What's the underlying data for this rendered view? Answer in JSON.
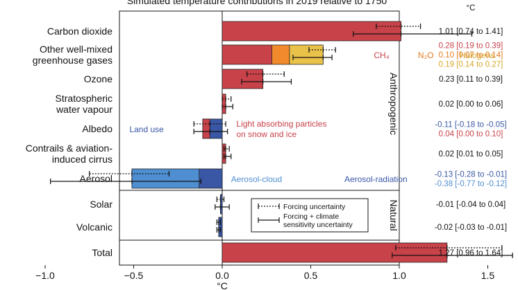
{
  "chart_data": {
    "type": "bar",
    "title": "Simulated temperature contributions in 2019 relative to 1750",
    "xlabel": "°C",
    "value_unit": "°C",
    "xlim": [
      -1.15,
      2.0
    ],
    "xticks": [
      -1.0,
      -0.5,
      0.0,
      0.5,
      1.0,
      1.5,
      2.0
    ],
    "xtick_labels": [
      "−1.0",
      "−0.5",
      "0.0",
      "0.5",
      "1.0",
      "1.5",
      "2.0"
    ],
    "groups": [
      {
        "name": "Anthropogenic",
        "rows": 7
      },
      {
        "name": "Natural",
        "rows": 2
      }
    ],
    "categories": [
      {
        "name": "carbon-dioxide",
        "label_lines": [
          "Carbon dioxide"
        ],
        "segments": [
          {
            "name": "Carbon dioxide",
            "start": 0,
            "end": 1.01,
            "color": "#c8424a"
          }
        ],
        "forcing_unc": [
          0.87,
          1.12
        ],
        "forcing_unc_mid": 1.01,
        "total_unc": [
          0.74,
          1.41
        ],
        "total_unc_mid": 1.01,
        "value_lines": [
          {
            "text": "1.01 [0.74 to 1.41]",
            "color": "#111111"
          }
        ]
      },
      {
        "name": "other-ghg",
        "label_lines": [
          "Other well-mixed",
          "greenhouse gases"
        ],
        "segments": [
          {
            "name": "CH₄",
            "start": 0,
            "end": 0.28,
            "color": "#c8424a"
          },
          {
            "name": "N₂O",
            "start": 0.28,
            "end": 0.38,
            "color": "#f08a2c"
          },
          {
            "name": "Halogens",
            "start": 0.38,
            "end": 0.57,
            "color": "#e9c24a"
          }
        ],
        "forcing_unc": [
          0.49,
          0.64
        ],
        "forcing_unc_mid": 0.57,
        "total_unc": [
          0.4,
          0.62
        ],
        "total_unc_mid": 0.57,
        "value_lines": [
          {
            "text": "0.28 [0.19 to 0.39]",
            "color": "#c8424a"
          },
          {
            "text": "0.10 [0.07 to 0.14]",
            "color": "#e07b1f"
          },
          {
            "text": "0.19 [0.14 to 0.27]",
            "color": "#d6a82a"
          }
        ],
        "segment_labels": [
          {
            "text": "CH₄",
            "color": "#c8424a",
            "at": 0.9
          },
          {
            "text": "N₂O",
            "color": "#e07b1f",
            "at": 1.15
          },
          {
            "text": "Halogens",
            "color": "#d6a82a",
            "at": 1.44
          }
        ]
      },
      {
        "name": "ozone",
        "label_lines": [
          "Ozone"
        ],
        "segments": [
          {
            "name": "Ozone",
            "start": 0,
            "end": 0.23,
            "color": "#c8424a"
          }
        ],
        "forcing_unc": [
          0.14,
          0.35
        ],
        "forcing_unc_mid": 0.23,
        "total_unc": [
          0.11,
          0.39
        ],
        "total_unc_mid": 0.23,
        "value_lines": [
          {
            "text": "0.23 [0.11 to 0.39]",
            "color": "#111111"
          }
        ]
      },
      {
        "name": "stratospheric-water-vapour",
        "label_lines": [
          "Stratospheric",
          "water vapour"
        ],
        "segments": [
          {
            "name": "Stratospheric water vapour",
            "start": 0,
            "end": 0.02,
            "color": "#c8424a"
          }
        ],
        "forcing_unc": [
          0.0,
          0.05
        ],
        "forcing_unc_mid": 0.02,
        "total_unc": [
          0.0,
          0.06
        ],
        "total_unc_mid": 0.02,
        "value_lines": [
          {
            "text": "0.02 [0.00 to 0.06]",
            "color": "#111111"
          }
        ]
      },
      {
        "name": "albedo",
        "label_lines": [
          "Albedo"
        ],
        "segments": [
          {
            "name": "Land use",
            "start": 0,
            "end": -0.11,
            "color": "#3a57a6"
          },
          {
            "name": "Light absorbing particles on snow and ice",
            "start": -0.11,
            "end": -0.07,
            "color": "#c8424a"
          }
        ],
        "forcing_unc": [
          -0.16,
          0.02
        ],
        "forcing_unc_mid": -0.07,
        "total_unc": [
          -0.16,
          0.03
        ],
        "total_unc_mid": -0.07,
        "value_lines": [
          {
            "text": "-0.11 [-0.18 to -0.05]",
            "color": "#3a57a6"
          },
          {
            "text": "0.04 [0.00 to 0.10]",
            "color": "#c8424a"
          }
        ],
        "segment_labels": [
          {
            "text": "Land use",
            "color": "#3a57a6",
            "at": -0.33,
            "anchor": "end"
          },
          {
            "text": "Light absorbing particles",
            "color": "#c8424a",
            "at": 0.08,
            "anchor": "start",
            "line": 0
          },
          {
            "text": "on snow and ice",
            "color": "#c8424a",
            "at": 0.08,
            "anchor": "start",
            "line": 1
          }
        ]
      },
      {
        "name": "contrails",
        "label_lines": [
          "Contrails & aviation-",
          "induced cirrus"
        ],
        "segments": [
          {
            "name": "Contrails & aviation-induced cirrus",
            "start": 0,
            "end": 0.02,
            "color": "#c8424a"
          }
        ],
        "forcing_unc": [
          0.01,
          0.04
        ],
        "forcing_unc_mid": 0.02,
        "total_unc": [
          0.01,
          0.05
        ],
        "total_unc_mid": 0.02,
        "value_lines": [
          {
            "text": "0.02 [0.01 to 0.05]",
            "color": "#111111"
          }
        ]
      },
      {
        "name": "aerosol",
        "label_lines": [
          "Aerosol"
        ],
        "segments": [
          {
            "name": "Aerosol-cloud",
            "start": -0.13,
            "end": -0.51,
            "color": "#4f8fd1"
          },
          {
            "name": "Aerosol-radiation",
            "start": 0,
            "end": -0.13,
            "color": "#3a57a6"
          }
        ],
        "forcing_unc": [
          -0.75,
          -0.3
        ],
        "forcing_unc_mid": -0.51,
        "total_unc": [
          -0.97,
          -0.12
        ],
        "total_unc_mid": -0.51,
        "value_lines": [
          {
            "text": "-0.13 [-0.28 to -0.01]",
            "color": "#3a57a6"
          },
          {
            "text": "-0.38 [-0.77 to -0.12]",
            "color": "#4f8fd1"
          }
        ],
        "segment_labels": [
          {
            "text": "Aerosol-cloud",
            "color": "#4f8fd1",
            "at": 0.05,
            "anchor": "start"
          },
          {
            "text": "Aerosol-radiation",
            "color": "#3a57a6",
            "at": 0.69,
            "anchor": "start"
          }
        ]
      },
      {
        "name": "solar",
        "label_lines": [
          "Solar"
        ],
        "segments": [
          {
            "name": "Solar",
            "start": 0,
            "end": -0.01,
            "color": "#3a57a6"
          }
        ],
        "forcing_unc": [
          -0.03,
          0.01
        ],
        "forcing_unc_mid": -0.01,
        "total_unc": [
          -0.04,
          0.04
        ],
        "total_unc_mid": -0.01,
        "value_lines": [
          {
            "text": "-0.01 [-0.04 to 0.04]",
            "color": "#111111"
          }
        ]
      },
      {
        "name": "volcanic",
        "label_lines": [
          "Volcanic"
        ],
        "segments": [
          {
            "name": "Volcanic",
            "start": 0,
            "end": -0.02,
            "color": "#3a57a6"
          }
        ],
        "forcing_unc": [
          -0.03,
          -0.01
        ],
        "forcing_unc_mid": -0.02,
        "total_unc": [
          -0.03,
          -0.01
        ],
        "total_unc_mid": -0.02,
        "value_lines": [
          {
            "text": "-0.02 [-0.03 to -0.01]",
            "color": "#111111"
          }
        ]
      },
      {
        "name": "total",
        "label_lines": [
          "Total"
        ],
        "segments": [
          {
            "name": "Total",
            "start": 0,
            "end": 1.27,
            "color": "#c8424a"
          }
        ],
        "forcing_unc": [
          0.98,
          1.58
        ],
        "forcing_unc_mid": 1.27,
        "total_unc": [
          0.96,
          1.64
        ],
        "total_unc_mid": 1.27,
        "value_lines": [
          {
            "text": "1.27 [0.96 to 1.64]",
            "color": "#111111"
          }
        ]
      }
    ],
    "legend": {
      "placement": "lower-right",
      "entries": [
        {
          "style": "dotted",
          "lines": [
            "Forcing uncertainty"
          ]
        },
        {
          "style": "solid",
          "lines": [
            "Forcing + climate",
            "sensitivity uncertainty"
          ]
        }
      ]
    },
    "value_column_unit": "°C"
  }
}
